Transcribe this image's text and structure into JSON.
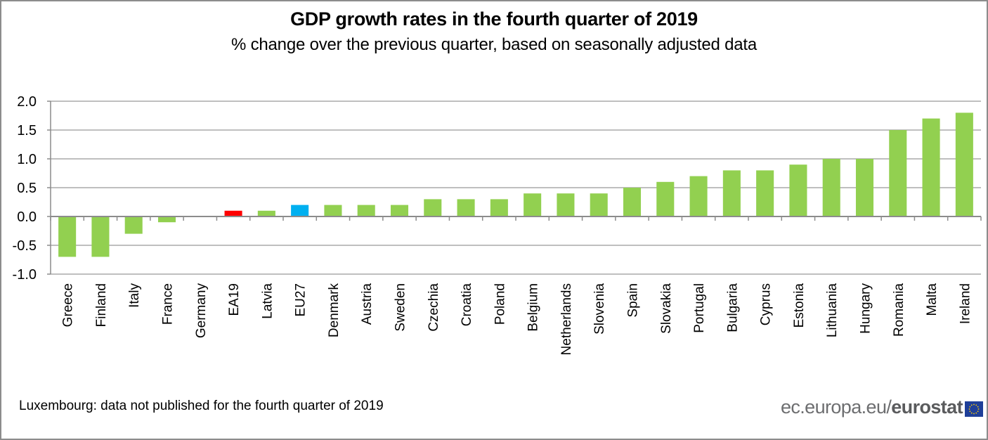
{
  "chart_data": {
    "type": "bar",
    "title": "GDP growth rates in the fourth quarter of 2019",
    "subtitle": "% change over the previous quarter, based on seasonally adjusted data",
    "xlabel": "",
    "ylabel": "",
    "ylim": [
      -1.0,
      2.0
    ],
    "yticks": [
      "2.0",
      "1.5",
      "1.0",
      "0.5",
      "0.0",
      "-0.5",
      "-1.0"
    ],
    "ytick_values": [
      2.0,
      1.5,
      1.0,
      0.5,
      0.0,
      -0.5,
      -1.0
    ],
    "grid": true,
    "categories": [
      "Greece",
      "Finland",
      "Italy",
      "France",
      "Germany",
      "EA19",
      "Latvia",
      "EU27",
      "Denmark",
      "Austria",
      "Sweden",
      "Czechia",
      "Croatia",
      "Poland",
      "Belgium",
      "Netherlands",
      "Slovenia",
      "Spain",
      "Slovakia",
      "Portugal",
      "Bulgaria",
      "Cyprus",
      "Estonia",
      "Lithuania",
      "Hungary",
      "Romania",
      "Malta",
      "Ireland"
    ],
    "values": [
      -0.7,
      -0.7,
      -0.3,
      -0.1,
      0.0,
      0.1,
      0.1,
      0.2,
      0.2,
      0.2,
      0.2,
      0.3,
      0.3,
      0.3,
      0.4,
      0.4,
      0.4,
      0.5,
      0.6,
      0.7,
      0.8,
      0.8,
      0.9,
      1.0,
      1.0,
      1.5,
      1.7,
      1.8
    ],
    "colors": {
      "default": "#92d050",
      "EA19": "#ff0000",
      "EU27": "#00b0f0",
      "grid": "#bfbfbf",
      "axis": "#8c8c8c"
    }
  },
  "footnote": "Luxembourg:  data not published  for the fourth quarter of 2019",
  "logo": {
    "prefix": "ec.europa.eu/",
    "brand": "eurostat",
    "flag_icon": "eu-flag-icon"
  }
}
